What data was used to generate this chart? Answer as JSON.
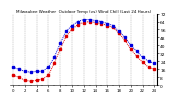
{
  "title": "Milwaukee Weather  Outdoor Temp (vs) Wind Chill (Last 24 Hours)",
  "bg_color": "#ffffff",
  "grid_color": "#888888",
  "temp_color": "#0000dd",
  "windchill_color": "#dd0000",
  "temp_data": [
    18,
    16,
    14,
    13,
    14,
    14,
    18,
    28,
    42,
    54,
    60,
    64,
    66,
    66,
    65,
    64,
    62,
    60,
    54,
    48,
    40,
    34,
    28,
    24,
    22
  ],
  "windchill_data": [
    10,
    8,
    5,
    4,
    5,
    6,
    10,
    22,
    36,
    49,
    56,
    61,
    63,
    64,
    63,
    62,
    60,
    58,
    52,
    45,
    36,
    29,
    23,
    18,
    16
  ],
  "ylim_min": 0,
  "ylim_max": 72,
  "yticks": [
    0,
    8,
    16,
    24,
    32,
    40,
    48,
    56,
    64,
    72
  ],
  "ytick_labels": [
    "0",
    "8",
    "16",
    "24",
    "32",
    "40",
    "48",
    "56",
    "64",
    "72"
  ],
  "n_points": 25,
  "ylabel_fontsize": 3.2,
  "title_fontsize": 3.0,
  "tick_fontsize": 2.8,
  "line_width": 0.7,
  "marker_size": 1.5,
  "grid_linewidth": 0.3,
  "n_vgrid": 13
}
